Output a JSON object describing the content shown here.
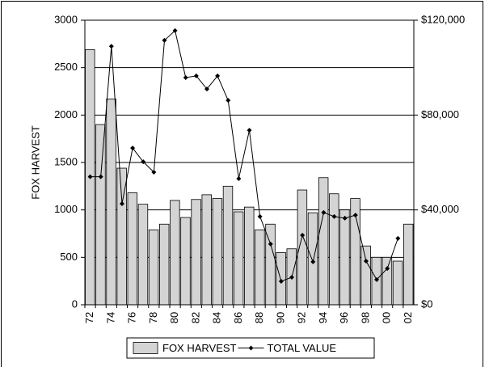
{
  "chart_data": {
    "type": "bar-line",
    "y_label": "FOX HARVEST",
    "categories": [
      "72",
      null,
      "74",
      null,
      "76",
      null,
      "78",
      null,
      "80",
      null,
      "82",
      null,
      "84",
      null,
      "86",
      null,
      "88",
      null,
      "90",
      null,
      "92",
      null,
      "94",
      null,
      "96",
      null,
      "98",
      null,
      "00",
      null,
      "02"
    ],
    "series": [
      {
        "name": "FOX HARVEST",
        "type": "bar",
        "color": "#d4d4d4",
        "values": [
          2690,
          1900,
          2170,
          1440,
          1180,
          1060,
          790,
          850,
          1100,
          920,
          1110,
          1160,
          1120,
          1250,
          980,
          1030,
          790,
          850,
          550,
          590,
          1210,
          970,
          1340,
          1170,
          1000,
          1120,
          620,
          500,
          500,
          460,
          850
        ]
      },
      {
        "name": "TOTAL VALUE",
        "type": "line",
        "axis": "y2",
        "color": "#000000",
        "values": [
          54000,
          54000,
          109000,
          42600,
          66100,
          60300,
          55900,
          111500,
          115600,
          95800,
          96500,
          91000,
          96500,
          86200,
          53200,
          73600,
          37200,
          25600,
          9900,
          11600,
          29300,
          18100,
          38900,
          37200,
          36500,
          37800,
          18400,
          10600,
          15300,
          28000,
          null
        ]
      }
    ],
    "ylim": [
      0,
      3000
    ],
    "yticks": [
      0,
      500,
      1000,
      1500,
      2000,
      2500,
      3000
    ],
    "y2lim": [
      0,
      120000
    ],
    "y2ticks": [
      {
        "value": 0,
        "label": "$0"
      },
      {
        "value": 40000,
        "label": "$40,000"
      },
      {
        "value": 80000,
        "label": "$80,000"
      },
      {
        "value": 120000,
        "label": "$120,000"
      }
    ],
    "grid": true,
    "legend": "bottom"
  }
}
